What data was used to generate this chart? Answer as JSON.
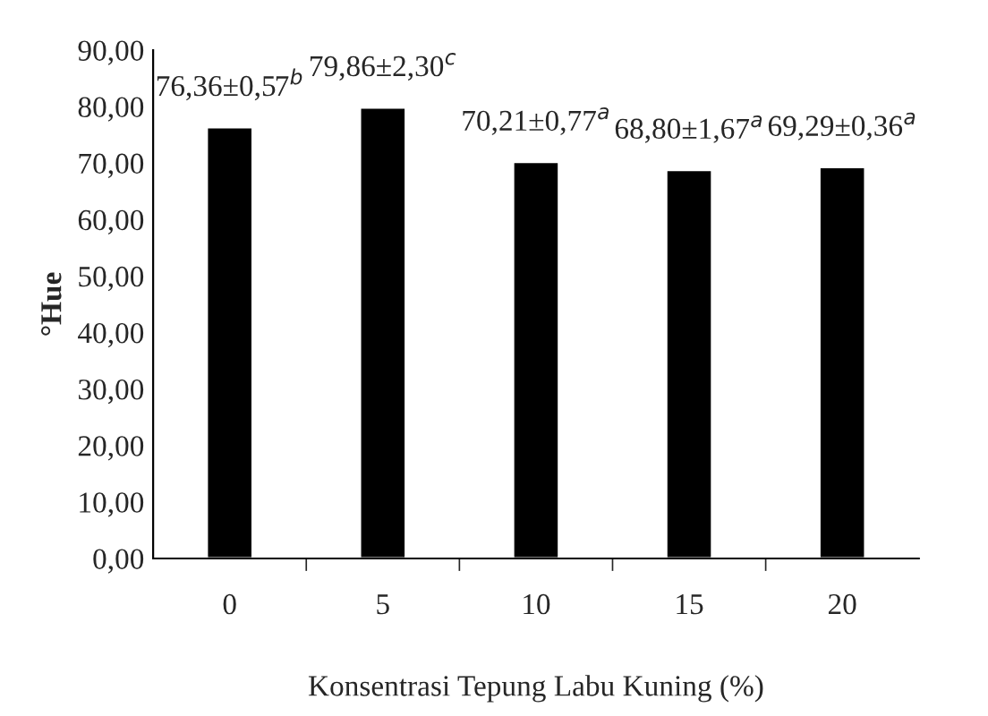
{
  "chart_data": {
    "type": "bar",
    "xlabel": "Konsentrasi Tepung Labu Kuning (%)",
    "ylabel": "°Hue",
    "categories": [
      "0",
      "5",
      "10",
      "15",
      "20"
    ],
    "values": [
      76.36,
      79.86,
      70.21,
      68.8,
      69.29
    ],
    "value_labels": [
      "76,36±0,57$^{b}$",
      "79,86±2,30$^{c}$",
      "70,21±0,77$^{a}$",
      "68,80±1,67$^{a}$",
      "69,29±0,36$^{a}$"
    ],
    "color": "#000000",
    "ylim": [
      0,
      90
    ],
    "yticks": [
      {
        "value": 0,
        "label": "0,00"
      },
      {
        "value": 10,
        "label": "10,00"
      },
      {
        "value": 20,
        "label": "20,00"
      },
      {
        "value": 30,
        "label": "30,00"
      },
      {
        "value": 40,
        "label": "40,00"
      },
      {
        "value": 50,
        "label": "50,00"
      },
      {
        "value": 60,
        "label": "60,00"
      },
      {
        "value": 70,
        "label": "70,00"
      },
      {
        "value": 80,
        "label": "80,00"
      },
      {
        "value": 90,
        "label": "90,00"
      }
    ],
    "grid": false,
    "legend": false
  }
}
